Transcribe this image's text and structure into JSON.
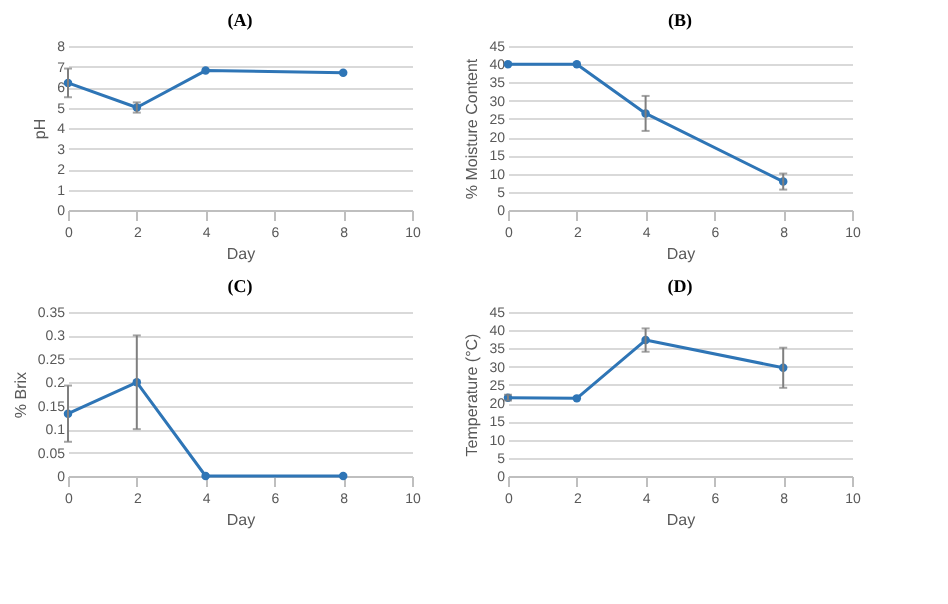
{
  "chart_data": [
    {
      "type": "line",
      "title": "(A)",
      "xlabel": "Day",
      "ylabel": "pH",
      "x": [
        0,
        2,
        4,
        8
      ],
      "series": [
        {
          "color": "#2e75b6",
          "values": [
            6.2,
            5.0,
            6.8,
            6.7
          ],
          "errors": [
            0.7,
            0.25,
            null,
            null
          ]
        }
      ],
      "xlim": [
        0,
        10
      ],
      "xticks": [
        0,
        2,
        4,
        6,
        8,
        10
      ],
      "ylim": [
        0,
        8
      ],
      "yticks": [
        0,
        1,
        2,
        3,
        4,
        5,
        6,
        7,
        8
      ],
      "grid": "y",
      "marker": "circle",
      "line_style": "solid"
    },
    {
      "type": "line",
      "title": "(B)",
      "xlabel": "Day",
      "ylabel": "% Moisture Content",
      "x": [
        0,
        2,
        4,
        8
      ],
      "series": [
        {
          "color": "#2e75b6",
          "values": [
            40,
            40,
            26.5,
            7.8
          ],
          "errors": [
            null,
            null,
            4.8,
            2.2
          ]
        }
      ],
      "xlim": [
        0,
        10
      ],
      "xticks": [
        0,
        2,
        4,
        6,
        8,
        10
      ],
      "ylim": [
        0,
        45
      ],
      "yticks": [
        0,
        5,
        10,
        15,
        20,
        25,
        30,
        35,
        40,
        45
      ],
      "grid": "y",
      "marker": "circle",
      "line_style": "solid"
    },
    {
      "type": "line",
      "title": "(C)",
      "xlabel": "Day",
      "ylabel": "% Brix",
      "x": [
        0,
        2,
        4,
        8
      ],
      "series": [
        {
          "color": "#2e75b6",
          "values": [
            0.133,
            0.2,
            0,
            0
          ],
          "errors": [
            0.06,
            0.1,
            null,
            null
          ]
        }
      ],
      "xlim": [
        0,
        10
      ],
      "xticks": [
        0,
        2,
        4,
        6,
        8,
        10
      ],
      "ylim": [
        0,
        0.35
      ],
      "yticks": [
        0,
        0.05,
        0.1,
        0.15,
        0.2,
        0.25,
        0.3,
        0.35
      ],
      "grid": "y",
      "marker": "circle",
      "line_style": "solid"
    },
    {
      "type": "line",
      "title": "(D)",
      "xlabel": "Day",
      "ylabel": "Temperature (°C)",
      "x": [
        0,
        2,
        4,
        8
      ],
      "series": [
        {
          "color": "#2e75b6",
          "values": [
            21.5,
            21.3,
            37.3,
            29.7
          ],
          "errors": [
            0.8,
            null,
            3.2,
            5.5
          ]
        }
      ],
      "xlim": [
        0,
        10
      ],
      "xticks": [
        0,
        2,
        4,
        6,
        8,
        10
      ],
      "ylim": [
        0,
        45
      ],
      "yticks": [
        0,
        5,
        10,
        15,
        20,
        25,
        30,
        35,
        40,
        45
      ],
      "grid": "y",
      "marker": "circle",
      "line_style": "solid"
    }
  ]
}
